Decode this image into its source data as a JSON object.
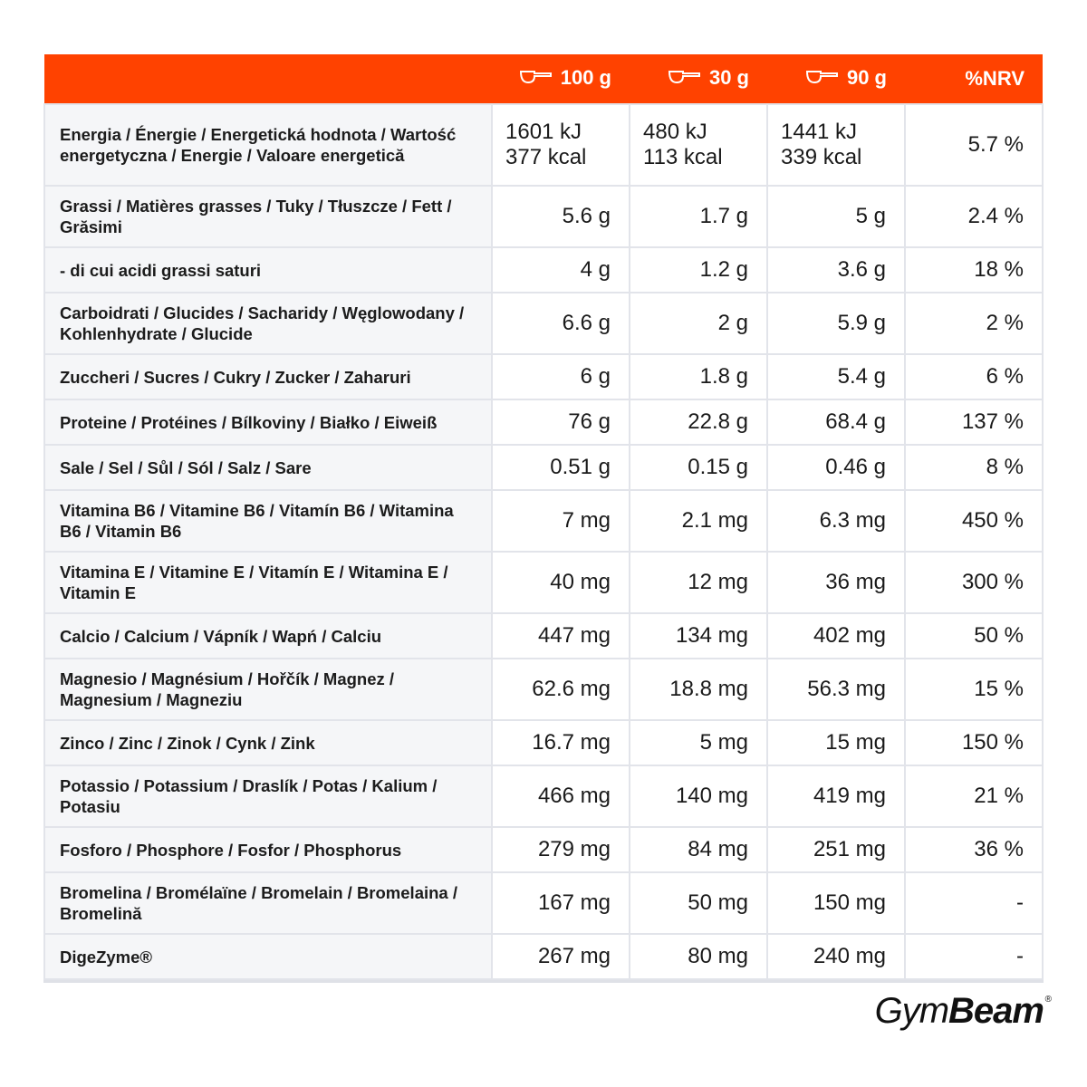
{
  "header": {
    "col_100g": "100 g",
    "col_30g": "30 g",
    "col_90g": "90 g",
    "col_nrv": "%NRV"
  },
  "icons": {
    "scoop": "scoop-icon"
  },
  "colors": {
    "header_bg": "#ff4200",
    "name_bg": "#f5f6f8",
    "border": "#e2e4ea"
  },
  "rows": [
    {
      "name": "Energia / Énergie / Energetická hodnota / Wartość energetyczna / Energie / Valoare energetică",
      "v100_kj": "1601 kJ",
      "v100_kcal": "377 kcal",
      "v30_kj": "480 kJ",
      "v30_kcal": "113 kcal",
      "v90_kj": "1441 kJ",
      "v90_kcal": "339 kcal",
      "nrv": "5.7 %"
    },
    {
      "name": "Grassi / Matières grasses / Tuky / Tłuszcze / Fett / Grăsimi",
      "v100": "5.6 g",
      "v30": "1.7 g",
      "v90": "5 g",
      "nrv": "2.4 %"
    },
    {
      "name": "- di cui acidi grassi saturi",
      "v100": "4 g",
      "v30": "1.2 g",
      "v90": "3.6 g",
      "nrv": "18 %"
    },
    {
      "name": "Carboidrati / Glucides / Sacharidy / Węglowodany / Kohlenhydrate / Glucide",
      "v100": "6.6 g",
      "v30": "2 g",
      "v90": "5.9 g",
      "nrv": "2 %"
    },
    {
      "name": "Zuccheri / Sucres / Cukry / Zucker / Zaharuri",
      "v100": "6 g",
      "v30": "1.8 g",
      "v90": "5.4 g",
      "nrv": "6 %"
    },
    {
      "name": "Proteine / Protéines / Bílkoviny / Białko / Eiweiß",
      "v100": "76 g",
      "v30": "22.8 g",
      "v90": "68.4 g",
      "nrv": "137 %"
    },
    {
      "name": "Sale / Sel / Sůl / Sól / Salz / Sare",
      "v100": "0.51 g",
      "v30": "0.15 g",
      "v90": "0.46 g",
      "nrv": "8 %"
    },
    {
      "name": "Vitamina B6 / Vitamine B6 / Vitamín B6 / Witamina B6 / Vitamin B6",
      "v100": "7 mg",
      "v30": "2.1 mg",
      "v90": "6.3 mg",
      "nrv": "450 %"
    },
    {
      "name": "Vitamina E / Vitamine E / Vitamín E / Witamina E / Vitamin E",
      "v100": "40 mg",
      "v30": "12 mg",
      "v90": "36 mg",
      "nrv": "300 %"
    },
    {
      "name": "Calcio / Calcium / Vápník / Wapń / Calciu",
      "v100": "447 mg",
      "v30": "134 mg",
      "v90": "402 mg",
      "nrv": "50 %"
    },
    {
      "name": "Magnesio / Magnésium / Hořčík / Magnez / Magnesium / Magneziu",
      "v100": "62.6 mg",
      "v30": "18.8 mg",
      "v90": "56.3 mg",
      "nrv": "15 %"
    },
    {
      "name": "Zinco / Zinc / Zinok / Cynk / Zink",
      "v100": "16.7 mg",
      "v30": "5 mg",
      "v90": "15 mg",
      "nrv": "150 %"
    },
    {
      "name": "Potassio / Potassium / Draslík / Potas / Kalium / Potasiu",
      "v100": "466 mg",
      "v30": "140 mg",
      "v90": "419 mg",
      "nrv": "21 %"
    },
    {
      "name": "Fosforo / Phosphore / Fosfor / Phosphorus",
      "v100": "279 mg",
      "v30": "84 mg",
      "v90": "251 mg",
      "nrv": "36 %"
    },
    {
      "name": "Bromelina / Bromélaïne / Bromelain / Bromelaina / Bromelină",
      "v100": "167 mg",
      "v30": "50 mg",
      "v90": "150 mg",
      "nrv": "-"
    },
    {
      "name": "DigeZyme®",
      "v100": "267 mg",
      "v30": "80 mg",
      "v90": "240 mg",
      "nrv": "-"
    }
  ],
  "logo": {
    "part1": "Gym",
    "part2": "Beam",
    "reg": "®"
  }
}
